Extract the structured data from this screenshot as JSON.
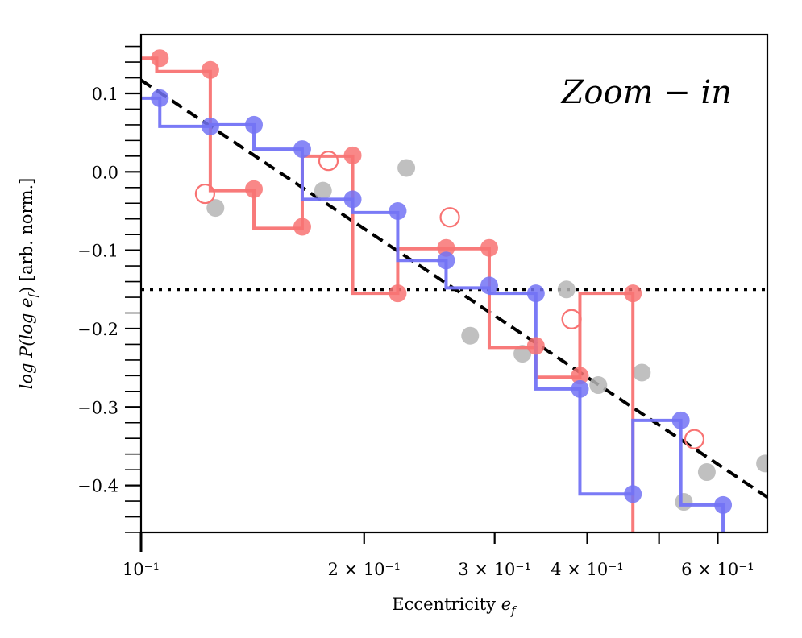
{
  "chart_data": {
    "type": "scatter",
    "title": "",
    "xlabel": "Eccentricity",
    "xlabel_symbol": "e",
    "xlabel_sub": "f",
    "ylabel_pre": "log",
    "ylabel_mid": "P(log e",
    "ylabel_sub": "f",
    "ylabel_post": ") [arb. norm.]",
    "xscale": "log",
    "xlim": [
      0.1,
      0.7
    ],
    "ylim": [
      -0.46,
      0.175
    ],
    "annotation": "Zoom − in",
    "x_ticks": [
      {
        "value": 0.1,
        "label": "10⁻¹"
      },
      {
        "value": 0.2,
        "label": "2 × 10⁻¹"
      },
      {
        "value": 0.3,
        "label": "3 × 10⁻¹"
      },
      {
        "value": 0.4,
        "label": "4 × 10⁻¹"
      },
      {
        "value": 0.6,
        "label": "6 × 10⁻¹"
      }
    ],
    "x_minor_ticks": [
      0.5
    ],
    "y_ticks": [
      {
        "value": 0.1,
        "label": "0.1"
      },
      {
        "value": 0.0,
        "label": "0.0"
      },
      {
        "value": -0.1,
        "label": "−0.1"
      },
      {
        "value": -0.2,
        "label": "−0.2"
      },
      {
        "value": -0.3,
        "label": "−0.3"
      },
      {
        "value": -0.4,
        "label": "−0.4"
      }
    ],
    "y_minor_step": 0.02,
    "reference_lines": [
      {
        "name": "power-law fit",
        "style": "dashed",
        "color": "#000000",
        "x": [
          0.1,
          0.7
        ],
        "y": [
          0.117,
          -0.415
        ]
      },
      {
        "name": "flat level",
        "style": "dotted",
        "color": "#000000",
        "y": -0.15
      }
    ],
    "series": [
      {
        "name": "red histogram",
        "color": "#f87373",
        "step_edges": [
          0.1,
          0.105,
          0.124,
          0.142,
          0.165,
          0.193,
          0.222,
          0.258,
          0.295,
          0.341,
          0.391,
          0.461
        ],
        "step_values": [
          0.145,
          0.128,
          -0.024,
          -0.072,
          0.02,
          -0.155,
          -0.098,
          -0.098,
          -0.224,
          -0.262,
          -0.155,
          -0.5
        ],
        "points": [
          {
            "x": 0.106,
            "y": 0.145
          },
          {
            "x": 0.124,
            "y": 0.13
          },
          {
            "x": 0.142,
            "y": -0.022
          },
          {
            "x": 0.165,
            "y": -0.07
          },
          {
            "x": 0.193,
            "y": 0.021
          },
          {
            "x": 0.222,
            "y": -0.155
          },
          {
            "x": 0.258,
            "y": -0.097
          },
          {
            "x": 0.295,
            "y": -0.097
          },
          {
            "x": 0.341,
            "y": -0.222
          },
          {
            "x": 0.391,
            "y": -0.26
          },
          {
            "x": 0.461,
            "y": -0.155
          }
        ]
      },
      {
        "name": "blue histogram",
        "color": "#7373f5",
        "step_edges": [
          0.1,
          0.106,
          0.124,
          0.142,
          0.165,
          0.193,
          0.222,
          0.258,
          0.295,
          0.341,
          0.391,
          0.461,
          0.535,
          0.61
        ],
        "step_values": [
          0.094,
          0.058,
          0.06,
          0.029,
          -0.035,
          -0.052,
          -0.113,
          -0.148,
          -0.155,
          -0.277,
          -0.411,
          -0.317,
          -0.425,
          -0.5
        ],
        "points": [
          {
            "x": 0.106,
            "y": 0.094
          },
          {
            "x": 0.124,
            "y": 0.058
          },
          {
            "x": 0.142,
            "y": 0.06
          },
          {
            "x": 0.165,
            "y": 0.029
          },
          {
            "x": 0.193,
            "y": -0.035
          },
          {
            "x": 0.222,
            "y": -0.05
          },
          {
            "x": 0.258,
            "y": -0.113
          },
          {
            "x": 0.295,
            "y": -0.145
          },
          {
            "x": 0.341,
            "y": -0.155
          },
          {
            "x": 0.391,
            "y": -0.277
          },
          {
            "x": 0.461,
            "y": -0.411
          },
          {
            "x": 0.535,
            "y": -0.317
          },
          {
            "x": 0.61,
            "y": -0.425
          }
        ]
      },
      {
        "name": "open red circles",
        "color": "#f87373",
        "marker": "open-circle",
        "points": [
          {
            "x": 0.122,
            "y": -0.028
          },
          {
            "x": 0.179,
            "y": 0.014
          },
          {
            "x": 0.261,
            "y": -0.058
          },
          {
            "x": 0.381,
            "y": -0.188
          },
          {
            "x": 0.558,
            "y": -0.341
          }
        ]
      },
      {
        "name": "grey points",
        "color": "#b5b5b5",
        "marker": "filled-circle",
        "points": [
          {
            "x": 0.126,
            "y": -0.046
          },
          {
            "x": 0.176,
            "y": -0.024
          },
          {
            "x": 0.228,
            "y": 0.005
          },
          {
            "x": 0.278,
            "y": -0.209
          },
          {
            "x": 0.327,
            "y": -0.232
          },
          {
            "x": 0.375,
            "y": -0.15
          },
          {
            "x": 0.414,
            "y": -0.272
          },
          {
            "x": 0.474,
            "y": -0.256
          },
          {
            "x": 0.54,
            "y": -0.421
          },
          {
            "x": 0.58,
            "y": -0.383
          },
          {
            "x": 0.695,
            "y": -0.372
          }
        ]
      }
    ]
  }
}
